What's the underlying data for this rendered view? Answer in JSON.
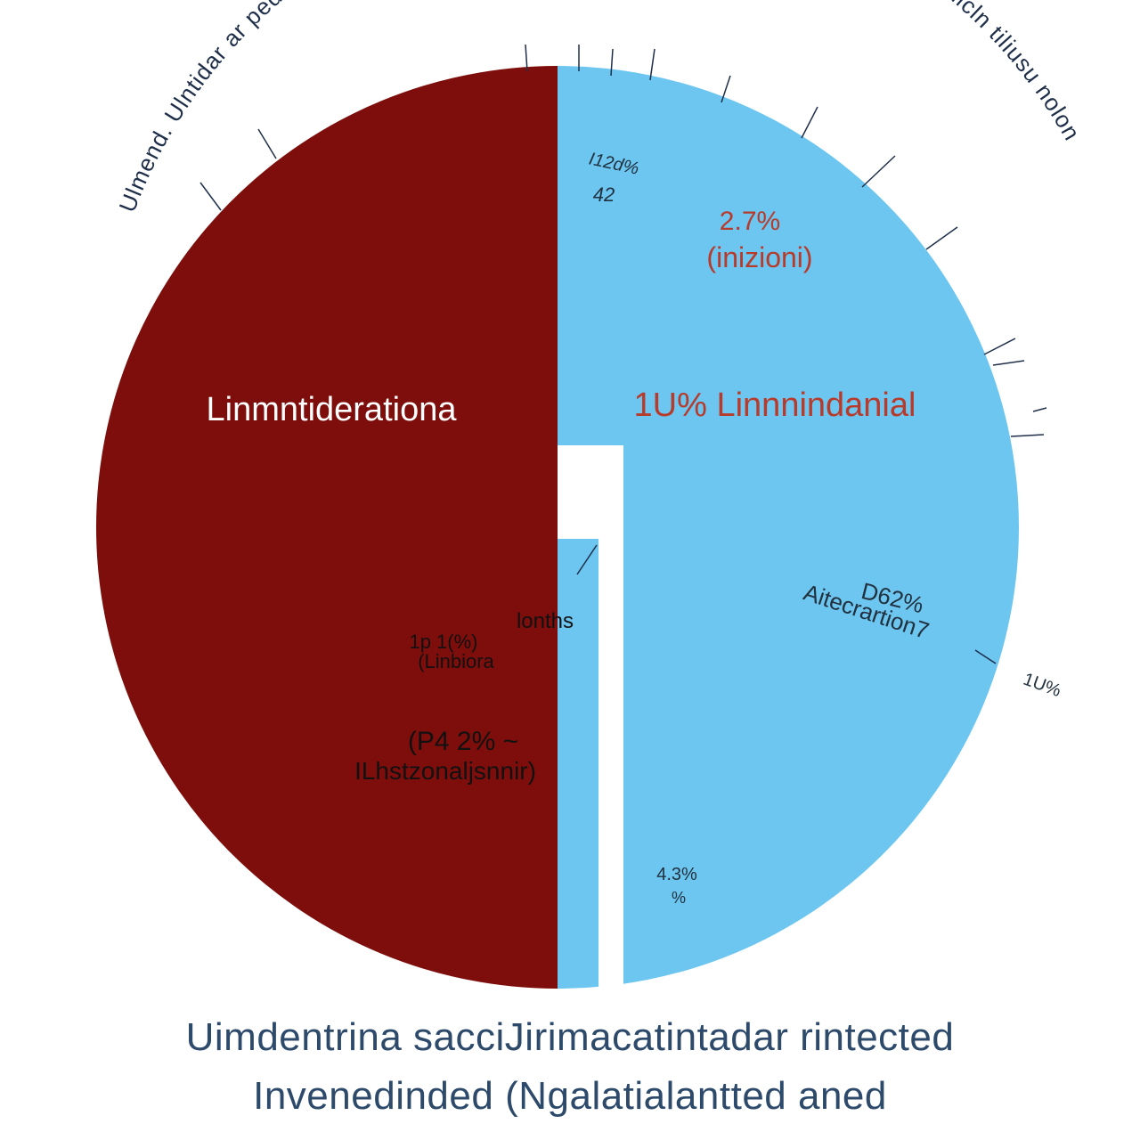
{
  "chart_data": {
    "type": "pie",
    "title_arc": "Ulmend. Ulntidar ar pednilierire-Dssticpint ID laitiars of Nemort Ulsterwatrsegined sli sijnnicln tiliusu nolon",
    "slices": [
      {
        "name": "Linmntiderationa",
        "color": "#7e0e0c",
        "start_deg": 180,
        "end_deg": 360
      },
      {
        "name": "1U% Linnnindanial",
        "color": "#6cc6f0",
        "start_deg": 0,
        "end_deg": 180
      }
    ],
    "annotations": [
      {
        "id": "label-left-main",
        "text": "Linmntiderationa",
        "color": "#ffffff"
      },
      {
        "id": "label-right-main",
        "text": "1U% Linnnindanial",
        "color": "#b73a2a"
      },
      {
        "id": "label-top-pct",
        "text": "2.7%",
        "color": "#b73a2a"
      },
      {
        "id": "label-top-sub",
        "text": "(inizioni)",
        "color": "#b73a2a"
      },
      {
        "id": "label-small-a1",
        "text": "I12d%",
        "color": "#22313f"
      },
      {
        "id": "label-small-a2",
        "text": "42",
        "color": "#22313f"
      },
      {
        "id": "label-d62",
        "text": "D62%",
        "color": "#22313f"
      },
      {
        "id": "label-aitecra",
        "text": "Aitecrartion7",
        "color": "#22313f"
      },
      {
        "id": "label-outside-pct",
        "text": "1U%",
        "color": "#22313f"
      },
      {
        "id": "label-bottom-pct",
        "text": "4.3%",
        "color": "#22313f"
      },
      {
        "id": "label-bottom-sub",
        "text": "%",
        "color": "#22313f"
      },
      {
        "id": "label-lonths",
        "text": "lonths",
        "color": "#111111"
      },
      {
        "id": "label-mid-pct",
        "text": "1p 1(%)",
        "color": "#111111"
      },
      {
        "id": "label-mid-sub",
        "text": "(Linbiora",
        "color": "#111111"
      },
      {
        "id": "label-p42",
        "text": "(P4 2% ~",
        "color": "#111111"
      },
      {
        "id": "label-lhstz",
        "text": "ILhstzonaljsnnir)",
        "color": "#111111"
      }
    ]
  },
  "caption": {
    "line1": "Uimdentrina sacciJirimacatintadar rintected",
    "line2": "Invenedinded (Ngalatialantted aned"
  }
}
